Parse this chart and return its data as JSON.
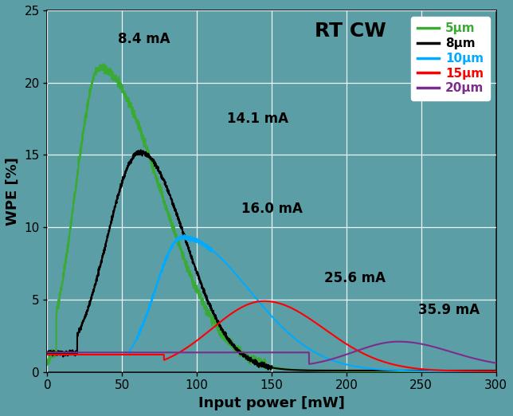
{
  "title": "RT CW",
  "xlabel": "Input power [mW]",
  "ylabel": "WPE [%]",
  "xlim": [
    0,
    300
  ],
  "ylim": [
    0,
    25
  ],
  "xticks": [
    0,
    50,
    100,
    150,
    200,
    250,
    300
  ],
  "yticks": [
    0,
    5,
    10,
    15,
    20,
    25
  ],
  "background_color": "#5b9ea6",
  "plot_bg_color": "#5b9ea6",
  "grid_color": "white",
  "series": [
    {
      "label": "5μm",
      "color": "#3aaa35",
      "annotation": "8.4 mA",
      "ann_x": 47,
      "ann_y": 22.5,
      "text_color": "#3aaa35"
    },
    {
      "label": "8μm",
      "color": "#000000",
      "annotation": "14.1 mA",
      "ann_x": 120,
      "ann_y": 17.0,
      "text_color": "#000000"
    },
    {
      "label": "10μm",
      "color": "#00aaff",
      "annotation": "16.0 mA",
      "ann_x": 130,
      "ann_y": 10.8,
      "text_color": "#00aaff"
    },
    {
      "label": "15μm",
      "color": "#ff0000",
      "annotation": "25.6 mA",
      "ann_x": 185,
      "ann_y": 6.0,
      "text_color": "#ff0000"
    },
    {
      "label": "20μm",
      "color": "#7b2d8b",
      "annotation": "35.9 mA",
      "ann_x": 248,
      "ann_y": 3.8,
      "text_color": "#7b2d8b"
    }
  ]
}
